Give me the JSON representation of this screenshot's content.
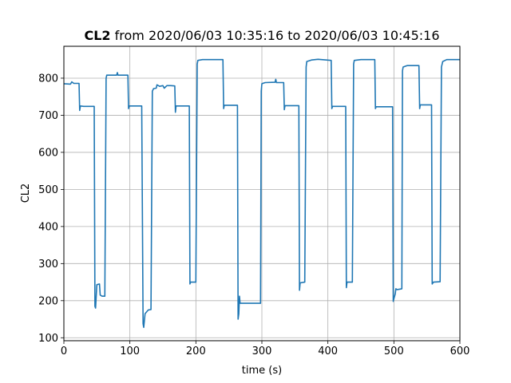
{
  "chart_data": {
    "type": "line",
    "title": {
      "bold": "CL2",
      "rest": " from 2020/06/03 10:35:16 to 2020/06/03 10:45:16"
    },
    "xlabel": "time (s)",
    "ylabel": "CL2",
    "xlim": [
      0,
      600
    ],
    "ylim": [
      92,
      886
    ],
    "x_ticks": [
      0,
      100,
      200,
      300,
      400,
      500,
      600
    ],
    "y_ticks": [
      100,
      200,
      300,
      400,
      500,
      600,
      700,
      800
    ],
    "grid": true,
    "series": [
      {
        "color": "#1f77b4",
        "points": [
          [
            0,
            785
          ],
          [
            10,
            784
          ],
          [
            12,
            790
          ],
          [
            15,
            786
          ],
          [
            23,
            786
          ],
          [
            24,
            713
          ],
          [
            25,
            725
          ],
          [
            30,
            724
          ],
          [
            46,
            724
          ],
          [
            47,
            185
          ],
          [
            48,
            180
          ],
          [
            50,
            243
          ],
          [
            54,
            245
          ],
          [
            55,
            215
          ],
          [
            58,
            212
          ],
          [
            62,
            212
          ],
          [
            64,
            800
          ],
          [
            65,
            808
          ],
          [
            75,
            808
          ],
          [
            80,
            808
          ],
          [
            81,
            815
          ],
          [
            82,
            808
          ],
          [
            97,
            808
          ],
          [
            98,
            718
          ],
          [
            99,
            725
          ],
          [
            118,
            725
          ],
          [
            120,
            138
          ],
          [
            121,
            128
          ],
          [
            123,
            165
          ],
          [
            128,
            175
          ],
          [
            132,
            176
          ],
          [
            134,
            765
          ],
          [
            136,
            772
          ],
          [
            140,
            773
          ],
          [
            141,
            782
          ],
          [
            145,
            778
          ],
          [
            150,
            780
          ],
          [
            152,
            773
          ],
          [
            156,
            780
          ],
          [
            162,
            780
          ],
          [
            168,
            779
          ],
          [
            169,
            708
          ],
          [
            170,
            725
          ],
          [
            190,
            725
          ],
          [
            191,
            245
          ],
          [
            192,
            250
          ],
          [
            200,
            250
          ],
          [
            202,
            838
          ],
          [
            203,
            848
          ],
          [
            210,
            850
          ],
          [
            230,
            850
          ],
          [
            241,
            850
          ],
          [
            242,
            718
          ],
          [
            243,
            727
          ],
          [
            263,
            727
          ],
          [
            264,
            150
          ],
          [
            265,
            165
          ],
          [
            266,
            212
          ],
          [
            267,
            193
          ],
          [
            290,
            193
          ],
          [
            298,
            193
          ],
          [
            299,
            765
          ],
          [
            300,
            785
          ],
          [
            305,
            788
          ],
          [
            320,
            789
          ],
          [
            321,
            797
          ],
          [
            322,
            788
          ],
          [
            333,
            788
          ],
          [
            334,
            715
          ],
          [
            335,
            726
          ],
          [
            356,
            726
          ],
          [
            357,
            228
          ],
          [
            358,
            248
          ],
          [
            365,
            250
          ],
          [
            367,
            830
          ],
          [
            368,
            845
          ],
          [
            375,
            849
          ],
          [
            385,
            851
          ],
          [
            405,
            848
          ],
          [
            406,
            718
          ],
          [
            407,
            724
          ],
          [
            427,
            724
          ],
          [
            428,
            235
          ],
          [
            429,
            250
          ],
          [
            437,
            250
          ],
          [
            439,
            838
          ],
          [
            440,
            848
          ],
          [
            450,
            850
          ],
          [
            471,
            850
          ],
          [
            472,
            718
          ],
          [
            473,
            723
          ],
          [
            498,
            723
          ],
          [
            499,
            198
          ],
          [
            500,
            205
          ],
          [
            502,
            218
          ],
          [
            503,
            232
          ],
          [
            505,
            230
          ],
          [
            512,
            232
          ],
          [
            513,
            820
          ],
          [
            514,
            830
          ],
          [
            520,
            834
          ],
          [
            530,
            834
          ],
          [
            538,
            834
          ],
          [
            539,
            718
          ],
          [
            540,
            728
          ],
          [
            557,
            728
          ],
          [
            558,
            245
          ],
          [
            560,
            250
          ],
          [
            570,
            251
          ],
          [
            572,
            830
          ],
          [
            574,
            845
          ],
          [
            580,
            850
          ],
          [
            592,
            850
          ],
          [
            600,
            850
          ]
        ]
      }
    ]
  }
}
